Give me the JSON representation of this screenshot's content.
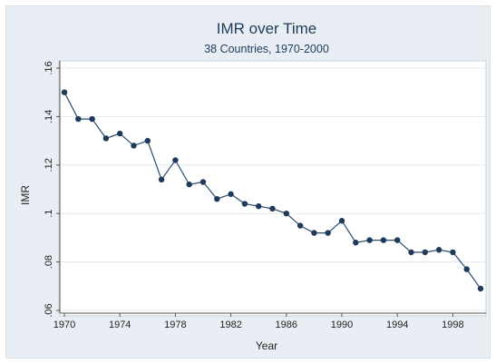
{
  "chart_data": {
    "type": "line",
    "title": "IMR over Time",
    "subtitle": "38 Countries, 1970-2000",
    "xlabel": "Year",
    "ylabel": "IMR",
    "xlim": [
      1970,
      2000
    ],
    "ylim": [
      0.06,
      0.16
    ],
    "x_ticks": [
      1970,
      1974,
      1978,
      1982,
      1986,
      1990,
      1994,
      1998
    ],
    "y_ticks": [
      0.06,
      0.08,
      0.1,
      0.12,
      0.14,
      0.16
    ],
    "y_tick_labels": [
      ".06",
      ".08",
      ".1",
      ".12",
      ".14",
      ".16"
    ],
    "grid": "horizontal",
    "marker": "circle",
    "colors": {
      "line": "#2e4b6b",
      "marker": "#1f3b5b",
      "grid": "#e4eaf0",
      "plot_background": "#ffffff",
      "outer_background": "#e8eef3",
      "title": "#1e3a5a"
    },
    "series": [
      {
        "x": [
          1970,
          1971,
          1972,
          1973,
          1974,
          1975,
          1976,
          1977,
          1978,
          1979,
          1980,
          1981,
          1982,
          1983,
          1984,
          1985,
          1986,
          1987,
          1988,
          1989,
          1990,
          1991,
          1992,
          1993,
          1994,
          1995,
          1996,
          1997,
          1998,
          1999,
          2000
        ],
        "y": [
          0.15,
          0.139,
          0.139,
          0.131,
          0.133,
          0.128,
          0.13,
          0.114,
          0.122,
          0.112,
          0.113,
          0.106,
          0.108,
          0.104,
          0.103,
          0.102,
          0.1,
          0.095,
          0.092,
          0.092,
          0.097,
          0.088,
          0.089,
          0.089,
          0.089,
          0.084,
          0.084,
          0.085,
          0.084,
          0.077,
          0.069
        ]
      }
    ]
  }
}
